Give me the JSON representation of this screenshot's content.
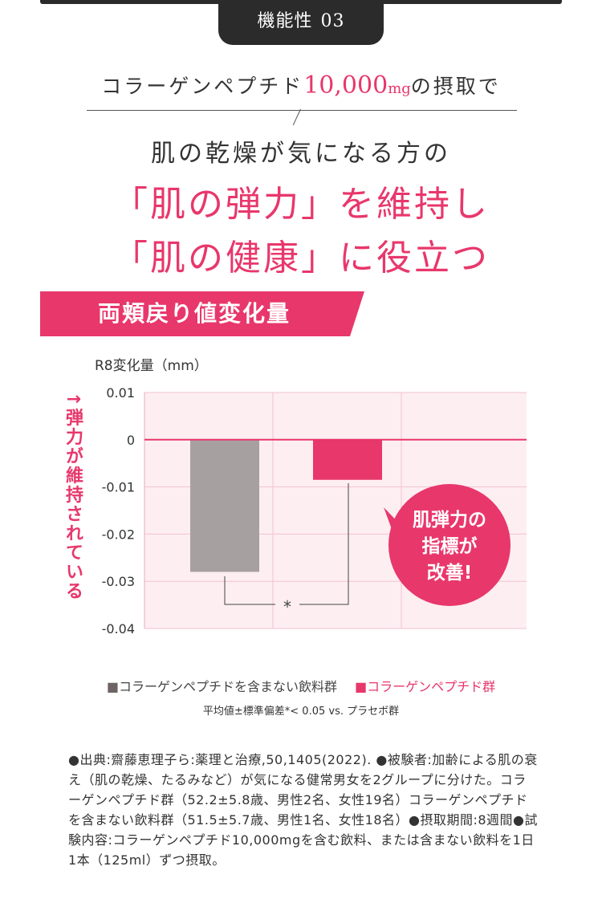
{
  "header": {
    "tab_label": "機能性",
    "tab_number": "03"
  },
  "headline": {
    "prefix": "コラーゲンペプチド",
    "amount": "10,000",
    "unit": "mg",
    "suffix": "の摂取で"
  },
  "subhead": "肌の乾燥が気になる方の",
  "main_lines": [
    "「肌の弾力」を維持し",
    "「肌の健康」に役立つ"
  ],
  "ribbon_title": "両頬戻り値変化量",
  "chart_data": {
    "type": "bar",
    "ylabel": "R8変化量（mm）",
    "side_label": "↑弾力が維持されている",
    "ylim": [
      -0.04,
      0.01
    ],
    "yticks": [
      "0.01",
      "0",
      "-0.01",
      "-0.02",
      "-0.03",
      "-0.04"
    ],
    "series": [
      {
        "name": "コラーゲンペプチドを含まない飲料群",
        "color": "#a7a0a0",
        "values": [
          -0.028
        ]
      },
      {
        "name": "コラーゲンペプチド群",
        "color": "#e8376b",
        "values": [
          -0.0085
        ]
      }
    ],
    "significance_marker": "*",
    "callout": [
      "肌弾力の",
      "指標が",
      "改善!"
    ]
  },
  "legend": {
    "square": "■",
    "item1": "コラーゲンペプチドを含まない飲料群",
    "item2": "コラーゲンペプチド群"
  },
  "note": "平均値±標準偏差*< 0.05 vs. プラセボ群",
  "source": "●出典:齋藤恵理子ら:薬理と治療,50,1405(2022). ●被験者:加齢による肌の衰え（肌の乾燥、たるみなど）が気になる健常男女を2グループに分けた。コラーゲンペプチド群（52.2±5.8歳、男性2名、女性19名）コラーゲンペプチドを含まない飲料群（51.5±5.7歳、男性1名、女性18名）●摂取期間:8週間●試験内容:コラーゲンペプチド10,000mgを含む飲料、または含まない飲料を1日1本（125ml）ずつ摂取。"
}
